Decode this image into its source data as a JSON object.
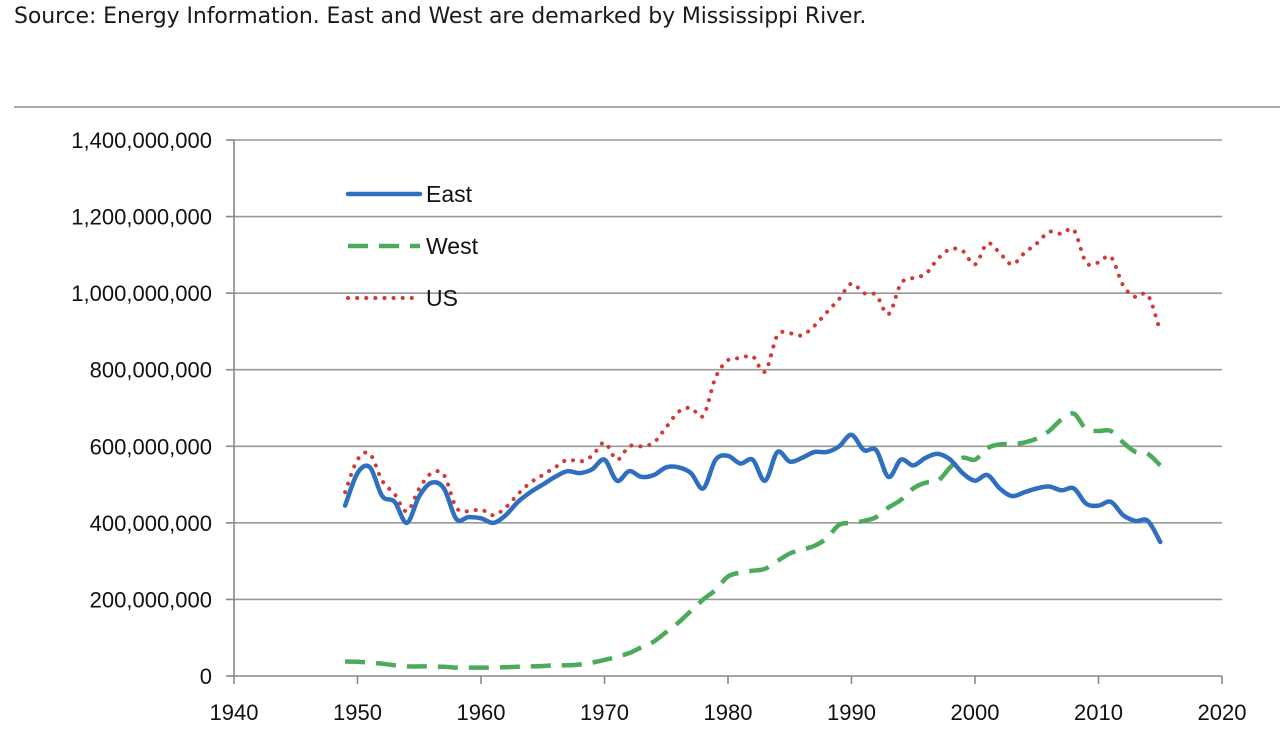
{
  "caption": "Source: Energy Information. East and West are demarked by Mississippi River.",
  "colors": {
    "East": "#2e6fc0",
    "West": "#4cab5a",
    "US": "#d33a36",
    "grid": "#999999",
    "axis": "#888888"
  },
  "chart_data": {
    "type": "line",
    "title": "",
    "xlabel": "",
    "ylabel": "",
    "xlim": [
      1940,
      2020
    ],
    "ylim": [
      0,
      1400000000
    ],
    "xticks": [
      1940,
      1950,
      1960,
      1970,
      1980,
      1990,
      2000,
      2010,
      2020
    ],
    "yticks": [
      0,
      200000000,
      400000000,
      600000000,
      800000000,
      1000000000,
      1200000000,
      1400000000
    ],
    "xtick_labels": [
      "1940",
      "1950",
      "1960",
      "1970",
      "1980",
      "1990",
      "2000",
      "2010",
      "2020"
    ],
    "ytick_labels": [
      "0",
      "200,000,000",
      "400,000,000",
      "600,000,000",
      "800,000,000",
      "1,000,000,000",
      "1,200,000,000",
      "1,400,000,000"
    ],
    "grid": "horizontal",
    "legend_position": "top-left",
    "x": [
      1949,
      1950,
      1951,
      1952,
      1953,
      1954,
      1955,
      1956,
      1957,
      1958,
      1959,
      1960,
      1961,
      1962,
      1963,
      1964,
      1965,
      1966,
      1967,
      1968,
      1969,
      1970,
      1971,
      1972,
      1973,
      1974,
      1975,
      1976,
      1977,
      1978,
      1979,
      1980,
      1981,
      1982,
      1983,
      1984,
      1985,
      1986,
      1987,
      1988,
      1989,
      1990,
      1991,
      1992,
      1993,
      1994,
      1995,
      1996,
      1997,
      1998,
      1999,
      2000,
      2001,
      2002,
      2003,
      2004,
      2005,
      2006,
      2007,
      2008,
      2009,
      2010,
      2011,
      2012,
      2013,
      2014,
      2015
    ],
    "series": [
      {
        "name": "East",
        "style": "solid",
        "values": [
          445000000,
          530000000,
          545000000,
          470000000,
          455000000,
          400000000,
          470000000,
          505000000,
          490000000,
          410000000,
          415000000,
          412000000,
          400000000,
          420000000,
          455000000,
          480000000,
          500000000,
          520000000,
          535000000,
          530000000,
          540000000,
          565000000,
          510000000,
          535000000,
          520000000,
          525000000,
          545000000,
          545000000,
          530000000,
          490000000,
          565000000,
          575000000,
          555000000,
          565000000,
          510000000,
          585000000,
          560000000,
          570000000,
          585000000,
          585000000,
          600000000,
          630000000,
          590000000,
          590000000,
          520000000,
          565000000,
          550000000,
          570000000,
          580000000,
          565000000,
          530000000,
          510000000,
          525000000,
          490000000,
          470000000,
          480000000,
          490000000,
          495000000,
          485000000,
          490000000,
          450000000,
          445000000,
          455000000,
          420000000,
          405000000,
          405000000,
          350000000
        ]
      },
      {
        "name": "West",
        "style": "dashed",
        "values": [
          38000000,
          37000000,
          35000000,
          32000000,
          28000000,
          25000000,
          25000000,
          25000000,
          24000000,
          22000000,
          22000000,
          22000000,
          22000000,
          23000000,
          24000000,
          25000000,
          26000000,
          28000000,
          28000000,
          30000000,
          35000000,
          42000000,
          50000000,
          60000000,
          75000000,
          90000000,
          115000000,
          140000000,
          170000000,
          200000000,
          225000000,
          260000000,
          270000000,
          275000000,
          280000000,
          300000000,
          320000000,
          330000000,
          340000000,
          360000000,
          395000000,
          400000000,
          405000000,
          415000000,
          440000000,
          460000000,
          490000000,
          505000000,
          510000000,
          545000000,
          570000000,
          565000000,
          595000000,
          605000000,
          605000000,
          610000000,
          620000000,
          640000000,
          670000000,
          685000000,
          645000000,
          640000000,
          640000000,
          610000000,
          585000000,
          580000000,
          550000000
        ]
      },
      {
        "name": "US",
        "style": "dotted",
        "values": [
          480000000,
          565000000,
          580000000,
          510000000,
          475000000,
          430000000,
          490000000,
          530000000,
          525000000,
          440000000,
          430000000,
          435000000,
          420000000,
          440000000,
          475000000,
          505000000,
          525000000,
          545000000,
          565000000,
          560000000,
          575000000,
          610000000,
          565000000,
          600000000,
          600000000,
          610000000,
          650000000,
          690000000,
          700000000,
          680000000,
          780000000,
          825000000,
          830000000,
          835000000,
          795000000,
          890000000,
          895000000,
          890000000,
          915000000,
          950000000,
          985000000,
          1025000000,
          1000000000,
          995000000,
          945000000,
          1025000000,
          1040000000,
          1050000000,
          1090000000,
          1115000000,
          1110000000,
          1075000000,
          1130000000,
          1105000000,
          1075000000,
          1105000000,
          1130000000,
          1160000000,
          1155000000,
          1165000000,
          1080000000,
          1080000000,
          1095000000,
          1020000000,
          990000000,
          995000000,
          900000000
        ]
      }
    ]
  }
}
